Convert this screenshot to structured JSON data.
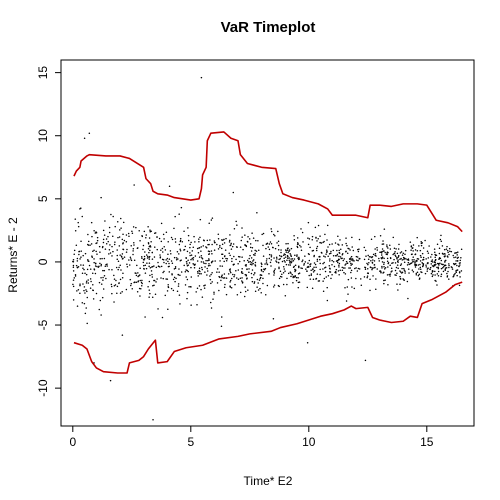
{
  "chart_data": {
    "type": "scatter",
    "title": "VaR Timeplot",
    "xlabel": "Time* E2",
    "ylabel": "Returns* E - 2",
    "xlim": [
      -0.5,
      17.0
    ],
    "ylim": [
      -13.0,
      16.0
    ],
    "x_ticks": [
      0,
      5,
      10,
      15
    ],
    "x_tick_labels": [
      "0",
      "5",
      "10",
      "15"
    ],
    "y_ticks": [
      -10,
      -5,
      0,
      5,
      10,
      15
    ],
    "y_tick_labels": [
      "-10",
      "-5",
      "0",
      "5",
      "10",
      "15"
    ],
    "grid": false,
    "colors": {
      "bands": "#c00000",
      "points": "#000000"
    },
    "series": [
      {
        "kind": "line",
        "values": [
          [
            0.05,
            6.8
          ],
          [
            0.15,
            7.2
          ],
          [
            0.3,
            7.5
          ],
          [
            0.35,
            8.0
          ],
          [
            0.6,
            8.4
          ],
          [
            0.7,
            8.5
          ],
          [
            1.4,
            8.4
          ],
          [
            2.0,
            8.4
          ],
          [
            2.4,
            8.2
          ],
          [
            3.0,
            7.5
          ],
          [
            3.1,
            6.6
          ],
          [
            3.3,
            6.2
          ],
          [
            3.4,
            5.6
          ],
          [
            3.6,
            5.4
          ],
          [
            4.0,
            5.3
          ],
          [
            4.3,
            5.1
          ],
          [
            5.0,
            4.9
          ],
          [
            5.35,
            5.0
          ],
          [
            5.45,
            5.8
          ],
          [
            5.5,
            6.9
          ],
          [
            5.65,
            7.5
          ],
          [
            5.7,
            9.6
          ],
          [
            5.85,
            10.2
          ],
          [
            6.4,
            10.3
          ],
          [
            6.7,
            9.8
          ],
          [
            7.0,
            9.6
          ],
          [
            7.1,
            8.5
          ],
          [
            7.4,
            7.8
          ],
          [
            8.0,
            7.5
          ],
          [
            8.6,
            7.4
          ],
          [
            8.75,
            6.2
          ],
          [
            8.9,
            5.4
          ],
          [
            9.3,
            5.1
          ],
          [
            9.8,
            4.9
          ],
          [
            10.4,
            4.6
          ],
          [
            10.8,
            4.2
          ],
          [
            11.0,
            3.7
          ],
          [
            11.4,
            3.7
          ],
          [
            12.0,
            3.7
          ],
          [
            12.5,
            3.5
          ],
          [
            12.6,
            4.5
          ],
          [
            13.0,
            4.5
          ],
          [
            13.5,
            4.4
          ],
          [
            14.0,
            4.6
          ],
          [
            14.6,
            4.6
          ],
          [
            15.0,
            4.5
          ],
          [
            15.4,
            3.3
          ],
          [
            15.9,
            3.1
          ],
          [
            16.3,
            2.8
          ],
          [
            16.5,
            2.4
          ]
        ]
      },
      {
        "kind": "line",
        "values": [
          [
            0.05,
            -6.4
          ],
          [
            0.4,
            -6.6
          ],
          [
            0.6,
            -6.9
          ],
          [
            0.8,
            -7.9
          ],
          [
            1.0,
            -8.4
          ],
          [
            1.3,
            -8.7
          ],
          [
            1.9,
            -8.8
          ],
          [
            2.3,
            -8.8
          ],
          [
            2.4,
            -8.0
          ],
          [
            2.8,
            -7.8
          ],
          [
            3.0,
            -7.5
          ],
          [
            3.2,
            -6.9
          ],
          [
            3.5,
            -6.2
          ],
          [
            3.6,
            -8.0
          ],
          [
            4.0,
            -7.9
          ],
          [
            4.3,
            -7.1
          ],
          [
            4.8,
            -6.8
          ],
          [
            5.5,
            -6.6
          ],
          [
            6.2,
            -6.1
          ],
          [
            7.0,
            -5.9
          ],
          [
            7.5,
            -5.7
          ],
          [
            8.4,
            -5.5
          ],
          [
            8.8,
            -5.2
          ],
          [
            9.5,
            -4.9
          ],
          [
            10.0,
            -4.6
          ],
          [
            10.5,
            -4.3
          ],
          [
            11.0,
            -4.1
          ],
          [
            11.5,
            -3.8
          ],
          [
            11.8,
            -3.5
          ],
          [
            12.0,
            -3.7
          ],
          [
            12.5,
            -3.6
          ],
          [
            12.7,
            -4.4
          ],
          [
            13.0,
            -4.6
          ],
          [
            13.5,
            -4.8
          ],
          [
            14.0,
            -4.7
          ],
          [
            14.3,
            -4.3
          ],
          [
            14.6,
            -4.4
          ],
          [
            14.8,
            -3.3
          ],
          [
            15.2,
            -3.0
          ],
          [
            15.8,
            -2.4
          ],
          [
            16.2,
            -1.8
          ],
          [
            16.5,
            -1.6
          ]
        ]
      }
    ],
    "scatter_points": [
      [
        0.3,
        4.2
      ],
      [
        0.5,
        9.8
      ],
      [
        0.7,
        10.2
      ],
      [
        3.4,
        -12.5
      ],
      [
        5.45,
        14.6
      ],
      [
        9.95,
        -6.4
      ],
      [
        12.4,
        -7.8
      ],
      [
        0.4,
        3.6
      ],
      [
        1.2,
        5.1
      ],
      [
        2.1,
        -5.8
      ],
      [
        2.6,
        6.1
      ],
      [
        3.8,
        -4.4
      ],
      [
        4.6,
        4.3
      ],
      [
        6.3,
        -5.1
      ],
      [
        7.8,
        3.9
      ],
      [
        8.5,
        -4.5
      ],
      [
        10.8,
        2.9
      ],
      [
        11.6,
        -3.1
      ],
      [
        13.2,
        2.6
      ],
      [
        14.2,
        -2.9
      ],
      [
        15.6,
        2.1
      ],
      [
        16.1,
        -1.9
      ],
      [
        1.6,
        -9.4
      ],
      [
        0.9,
        -8.0
      ],
      [
        4.1,
        6.0
      ],
      [
        6.8,
        5.5
      ],
      [
        0.2,
        -3.5
      ],
      [
        0.25,
        2.8
      ]
    ]
  }
}
